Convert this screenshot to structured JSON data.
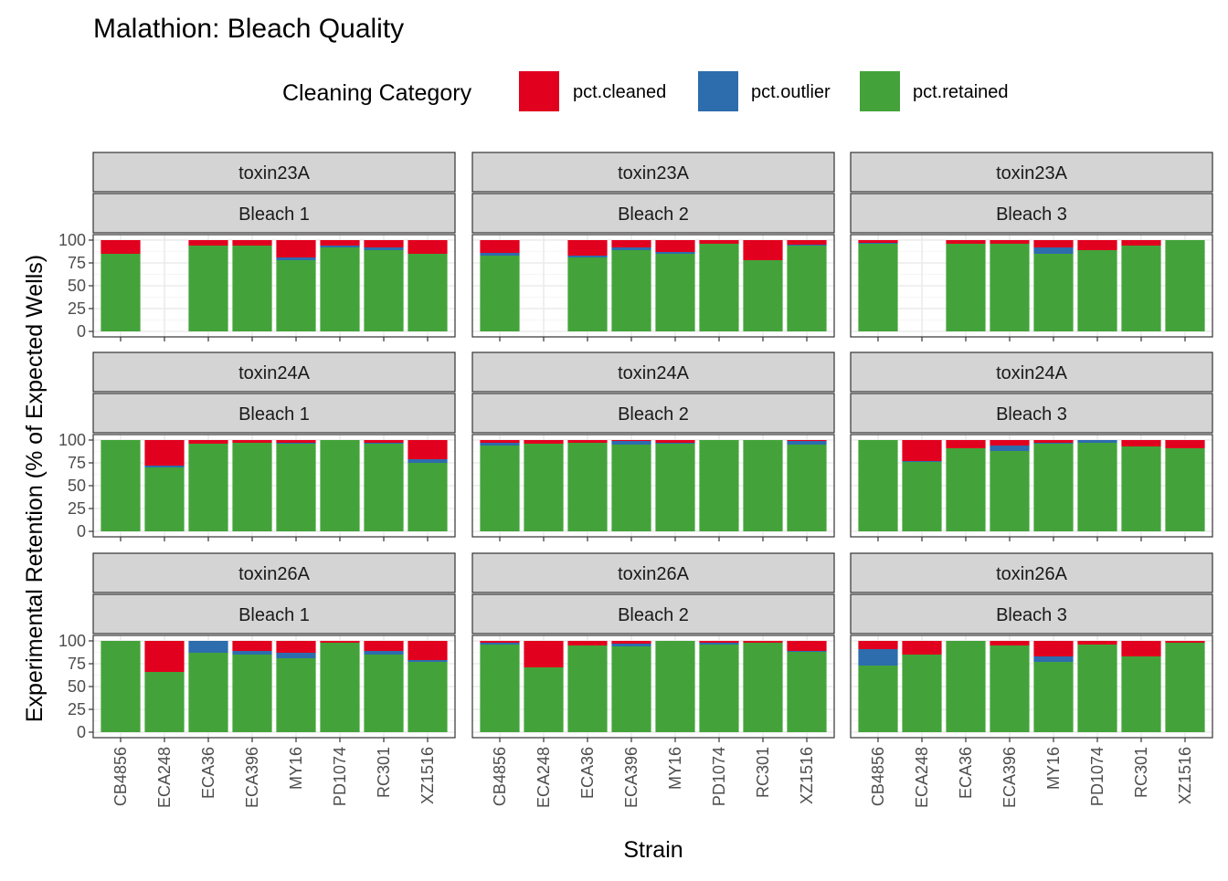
{
  "chart_data": {
    "type": "bar",
    "stacked": true,
    "title": "Malathion: Bleach Quality",
    "xlabel": "Strain",
    "ylabel": "Experimental Retention (% of Expected Wells)",
    "ylim": [
      0,
      100
    ],
    "yticks": [
      0,
      25,
      50,
      75,
      100
    ],
    "grid": true,
    "legend": {
      "title": "Cleaning Category",
      "position": "top",
      "entries": [
        {
          "key": "cleaned",
          "label": "pct.cleaned",
          "color": "#E1001E"
        },
        {
          "key": "outlier",
          "label": "pct.outlier",
          "color": "#2D6CAD"
        },
        {
          "key": "retained",
          "label": "pct.retained",
          "color": "#43A33A"
        }
      ]
    },
    "categories": [
      "CB4856",
      "ECA248",
      "ECA36",
      "ECA396",
      "MY16",
      "PD1074",
      "RC301",
      "XZ1516"
    ],
    "row_labels": [
      "toxin23A",
      "toxin24A",
      "toxin26A"
    ],
    "col_labels": [
      "Bleach 1",
      "Bleach 2",
      "Bleach 3"
    ],
    "panels": [
      [
        {
          "retained": [
            85,
            null,
            94,
            94,
            78,
            92,
            89,
            85
          ],
          "outlier": [
            0,
            null,
            0,
            0,
            3,
            2,
            3,
            0
          ],
          "cleaned": [
            15,
            null,
            6,
            6,
            19,
            6,
            8,
            15
          ]
        },
        {
          "retained": [
            83,
            null,
            81,
            89,
            85,
            96,
            78,
            94
          ],
          "outlier": [
            3,
            null,
            2,
            3,
            2,
            0,
            0,
            1
          ],
          "cleaned": [
            14,
            null,
            17,
            8,
            13,
            4,
            22,
            5
          ]
        },
        {
          "retained": [
            96,
            null,
            96,
            96,
            85,
            89,
            94,
            100
          ],
          "outlier": [
            1,
            null,
            0,
            0,
            7,
            0,
            0,
            0
          ],
          "cleaned": [
            3,
            null,
            4,
            4,
            8,
            11,
            6,
            0
          ]
        }
      ],
      [
        {
          "retained": [
            100,
            70,
            96,
            97,
            96,
            100,
            96,
            75
          ],
          "outlier": [
            0,
            2,
            0,
            0,
            1,
            0,
            1,
            4
          ],
          "cleaned": [
            0,
            28,
            4,
            3,
            3,
            0,
            3,
            21
          ]
        },
        {
          "retained": [
            94,
            96,
            97,
            95,
            96,
            100,
            100,
            95
          ],
          "outlier": [
            3,
            0,
            0,
            4,
            1,
            0,
            0,
            4
          ],
          "cleaned": [
            3,
            4,
            3,
            1,
            3,
            0,
            0,
            1
          ]
        },
        {
          "retained": [
            100,
            76,
            91,
            88,
            96,
            97,
            93,
            91
          ],
          "outlier": [
            0,
            1,
            0,
            6,
            1,
            3,
            0,
            0
          ],
          "cleaned": [
            0,
            23,
            9,
            6,
            3,
            0,
            7,
            9
          ]
        }
      ],
      [
        {
          "retained": [
            100,
            66,
            87,
            85,
            81,
            98,
            85,
            77
          ],
          "outlier": [
            0,
            0,
            13,
            4,
            6,
            0,
            4,
            2
          ],
          "cleaned": [
            0,
            34,
            0,
            11,
            13,
            2,
            11,
            21
          ]
        },
        {
          "retained": [
            96,
            71,
            95,
            94,
            100,
            96,
            98,
            88
          ],
          "outlier": [
            2,
            0,
            0,
            3,
            0,
            2,
            0,
            1
          ],
          "cleaned": [
            2,
            29,
            5,
            3,
            0,
            2,
            2,
            11
          ]
        },
        {
          "retained": [
            73,
            85,
            100,
            95,
            77,
            96,
            83,
            98
          ],
          "outlier": [
            18,
            0,
            0,
            0,
            6,
            0,
            0,
            0
          ],
          "cleaned": [
            9,
            15,
            0,
            5,
            17,
            4,
            17,
            2
          ]
        }
      ]
    ]
  }
}
